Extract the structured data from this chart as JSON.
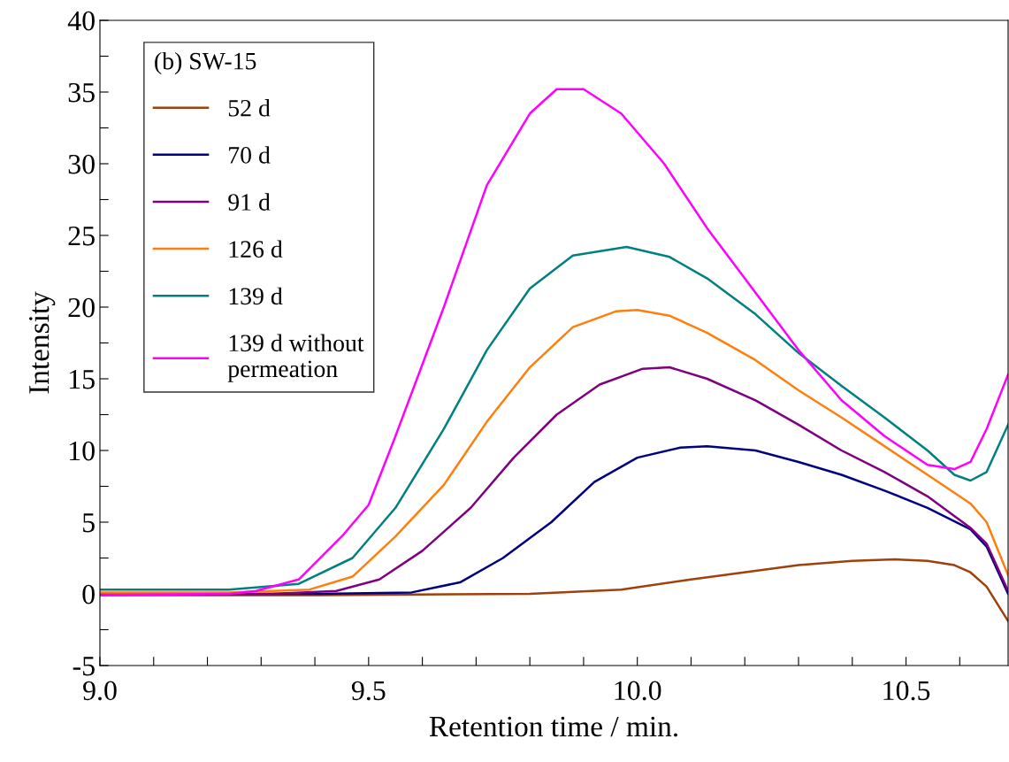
{
  "chart_data": {
    "type": "line",
    "xlabel": "Retention time / min.",
    "ylabel": "Intensity",
    "legend_title": "(b) SW-15",
    "legend": "top left",
    "grid": false,
    "marker": "none",
    "line_style": "solid",
    "xlim": [
      9.0,
      10.69
    ],
    "ylim": [
      -5,
      40
    ],
    "xticks": [
      {
        "value": 9.0,
        "label": "9.0"
      },
      {
        "value": 9.1,
        "label": null
      },
      {
        "value": 9.2,
        "label": null
      },
      {
        "value": 9.3,
        "label": null
      },
      {
        "value": 9.4,
        "label": null
      },
      {
        "value": 9.5,
        "label": "9.5"
      },
      {
        "value": 9.6,
        "label": null
      },
      {
        "value": 9.7,
        "label": null
      },
      {
        "value": 9.8,
        "label": null
      },
      {
        "value": 9.9,
        "label": null
      },
      {
        "value": 10.0,
        "label": "10.0"
      },
      {
        "value": 10.1,
        "label": null
      },
      {
        "value": 10.2,
        "label": null
      },
      {
        "value": 10.3,
        "label": null
      },
      {
        "value": 10.4,
        "label": null
      },
      {
        "value": 10.5,
        "label": "10.5"
      },
      {
        "value": 10.6,
        "label": null
      }
    ],
    "yticks": [
      -5,
      {
        "value": -2.5,
        "label": null
      },
      0,
      {
        "value": 2.5,
        "label": null
      },
      5,
      {
        "value": 7.5,
        "label": null
      },
      10,
      {
        "value": 12.5,
        "label": null
      },
      15,
      {
        "value": 17.5,
        "label": null
      },
      20,
      {
        "value": 22.5,
        "label": null
      },
      25,
      {
        "value": 27.5,
        "label": null
      },
      30,
      {
        "value": 32.5,
        "label": null
      },
      35,
      {
        "value": 37.5,
        "label": null
      },
      40
    ],
    "series": [
      {
        "name": "52 d",
        "color": "#a0400a",
        "x": [
          9.0,
          9.41,
          9.8,
          9.97,
          10.1,
          10.22,
          10.3,
          10.4,
          10.48,
          10.54,
          10.59,
          10.62,
          10.65,
          10.69
        ],
        "values": [
          -0.1,
          -0.1,
          0.0,
          0.3,
          1.0,
          1.6,
          2.0,
          2.3,
          2.4,
          2.3,
          2.0,
          1.5,
          0.5,
          -1.9
        ]
      },
      {
        "name": "70 d",
        "color": "#000080",
        "x": [
          9.0,
          9.41,
          9.58,
          9.67,
          9.75,
          9.84,
          9.92,
          10.0,
          10.08,
          10.13,
          10.22,
          10.3,
          10.38,
          10.46,
          10.54,
          10.62,
          10.65,
          10.69
        ],
        "values": [
          0.0,
          0.0,
          0.1,
          0.8,
          2.5,
          5.0,
          7.8,
          9.5,
          10.2,
          10.3,
          10.0,
          9.2,
          8.3,
          7.2,
          6.0,
          4.5,
          3.3,
          0.0
        ]
      },
      {
        "name": "91 d",
        "color": "#800080",
        "x": [
          9.0,
          9.32,
          9.44,
          9.52,
          9.6,
          9.69,
          9.77,
          9.85,
          9.93,
          10.01,
          10.06,
          10.13,
          10.22,
          10.3,
          10.38,
          10.46,
          10.54,
          10.62,
          10.65,
          10.69
        ],
        "values": [
          0.0,
          0.0,
          0.2,
          1.0,
          3.0,
          6.0,
          9.5,
          12.5,
          14.6,
          15.7,
          15.8,
          15.0,
          13.5,
          11.8,
          10.0,
          8.5,
          6.8,
          4.6,
          3.5,
          0.2
        ]
      },
      {
        "name": "126 d",
        "color": "#ff7f0e",
        "x": [
          9.0,
          9.24,
          9.39,
          9.47,
          9.55,
          9.64,
          9.72,
          9.8,
          9.88,
          9.96,
          10.0,
          10.06,
          10.13,
          10.22,
          10.3,
          10.38,
          10.46,
          10.54,
          10.62,
          10.65,
          10.69
        ],
        "values": [
          0.1,
          0.1,
          0.3,
          1.2,
          4.0,
          7.6,
          12.0,
          15.8,
          18.6,
          19.7,
          19.8,
          19.4,
          18.2,
          16.3,
          14.2,
          12.3,
          10.3,
          8.3,
          6.3,
          5.0,
          1.3
        ]
      },
      {
        "name": "139 d",
        "color": "#008080",
        "x": [
          9.0,
          9.24,
          9.37,
          9.47,
          9.55,
          9.64,
          9.72,
          9.8,
          9.88,
          9.98,
          10.06,
          10.13,
          10.22,
          10.3,
          10.38,
          10.46,
          10.54,
          10.59,
          10.62,
          10.65,
          10.69
        ],
        "values": [
          0.3,
          0.3,
          0.7,
          2.5,
          6.0,
          11.5,
          17.0,
          21.3,
          23.6,
          24.2,
          23.5,
          22.0,
          19.5,
          16.8,
          14.5,
          12.3,
          10.0,
          8.3,
          7.9,
          8.5,
          11.8
        ]
      },
      {
        "name": "139 d without\npermeation",
        "color": "#ff00ff",
        "x": [
          9.0,
          9.24,
          9.29,
          9.37,
          9.45,
          9.5,
          9.55,
          9.64,
          9.72,
          9.8,
          9.85,
          9.9,
          9.97,
          10.05,
          10.13,
          10.22,
          10.3,
          10.38,
          10.46,
          10.54,
          10.59,
          10.62,
          10.65,
          10.69
        ],
        "values": [
          -0.1,
          0.0,
          0.2,
          1.0,
          4.0,
          6.2,
          11.0,
          20.0,
          28.5,
          33.5,
          35.2,
          35.2,
          33.5,
          30.0,
          25.5,
          21.0,
          17.0,
          13.5,
          11.0,
          9.0,
          8.7,
          9.2,
          11.5,
          15.3
        ]
      }
    ]
  }
}
